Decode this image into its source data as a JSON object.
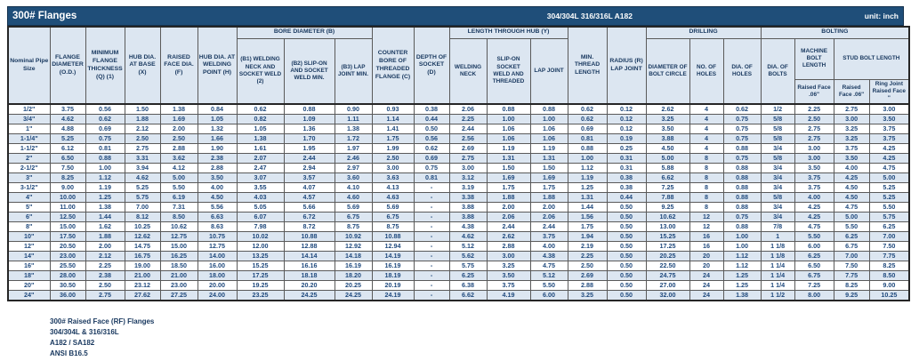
{
  "title_bar": {
    "title": "300# Flanges",
    "material": "304/304L 316/316L A182",
    "unit": "unit: inch"
  },
  "table": {
    "group_headers": {
      "bore": "BORE DIAMETER (B)",
      "length_hub": "LENGTH THROUGH HUB (Y)",
      "drilling": "DRILLING",
      "bolting": "BOLTING"
    },
    "headers": {
      "nps": "Nominal Pipe Size",
      "od": "FLANGE DIAMETER (O.D.)",
      "thickness": "MINIMUM FLANGE THICKNESS (Q) (1)",
      "hub_base": "HUB DIA. AT BASE (X)",
      "raised_face_dia": "RAISED FACE DIA. (F)",
      "hub_weld_point": "HUB DIA. AT WELDING POINT (H)",
      "b1": "(B1) WELDING NECK AND SOCKET WELD (2)",
      "b2": "(B2) SLIP-ON AND SOCKET WELD MIN.",
      "b3": "(B3) LAP JOINT MIN.",
      "counter_bore": "COUNTER BORE OF THREADED FLANGE (C)",
      "depth_socket": "DEPTH OF SOCKET (D)",
      "welding_neck": "WELDING NECK",
      "slip_on": "SLIP-ON SOCKET WELD AND THREADED",
      "lap_joint": "LAP JOINT",
      "min_thread": "MIN. THREAD LENGTH",
      "radius": "RADIUS (R) LAP JOINT",
      "bolt_circle": "DIAMETER OF BOLT CIRCLE",
      "no_holes": "NO. OF HOLES",
      "dia_holes": "DIA. OF HOLES",
      "dia_bolts": "DIA. OF BOLTS",
      "machine_bolt": "MACHINE BOLT LENGTH",
      "stud_bolt": "STUD BOLT LENGTH",
      "machine_rf": "Raised Face .06\"",
      "stud_rf": "Raised Face .06\"",
      "ring_joint_rf": "Ring Joint Raised Face \""
    },
    "column_keys": [
      "nps",
      "od",
      "thickness",
      "hub_base",
      "raised_face_dia",
      "hub_weld_point",
      "b1",
      "b2",
      "b3",
      "counter_bore",
      "depth_socket",
      "welding_neck",
      "slip_on",
      "lap_joint",
      "min_thread",
      "radius",
      "bolt_circle",
      "no_holes",
      "dia_holes",
      "dia_bolts",
      "machine_bolt_rf",
      "stud_bolt_rf",
      "stud_bolt_ring"
    ],
    "rows": [
      [
        "1/2\"",
        "3.75",
        "0.56",
        "1.50",
        "1.38",
        "0.84",
        "0.62",
        "0.88",
        "0.90",
        "0.93",
        "0.38",
        "2.06",
        "0.88",
        "0.88",
        "0.62",
        "0.12",
        "2.62",
        "4",
        "0.62",
        "1/2",
        "2.25",
        "2.75",
        "3.00"
      ],
      [
        "3/4\"",
        "4.62",
        "0.62",
        "1.88",
        "1.69",
        "1.05",
        "0.82",
        "1.09",
        "1.11",
        "1.14",
        "0.44",
        "2.25",
        "1.00",
        "1.00",
        "0.62",
        "0.12",
        "3.25",
        "4",
        "0.75",
        "5/8",
        "2.50",
        "3.00",
        "3.50"
      ],
      [
        "1\"",
        "4.88",
        "0.69",
        "2.12",
        "2.00",
        "1.32",
        "1.05",
        "1.36",
        "1.38",
        "1.41",
        "0.50",
        "2.44",
        "1.06",
        "1.06",
        "0.69",
        "0.12",
        "3.50",
        "4",
        "0.75",
        "5/8",
        "2.75",
        "3.25",
        "3.75"
      ],
      [
        "1-1/4\"",
        "5.25",
        "0.75",
        "2.50",
        "2.50",
        "1.66",
        "1.38",
        "1.70",
        "1.72",
        "1.75",
        "0.56",
        "2.56",
        "1.06",
        "1.06",
        "0.81",
        "0.19",
        "3.88",
        "4",
        "0.75",
        "5/8",
        "2.75",
        "3.25",
        "3.75"
      ],
      [
        "1-1/2\"",
        "6.12",
        "0.81",
        "2.75",
        "2.88",
        "1.90",
        "1.61",
        "1.95",
        "1.97",
        "1.99",
        "0.62",
        "2.69",
        "1.19",
        "1.19",
        "0.88",
        "0.25",
        "4.50",
        "4",
        "0.88",
        "3/4",
        "3.00",
        "3.75",
        "4.25"
      ],
      [
        "2\"",
        "6.50",
        "0.88",
        "3.31",
        "3.62",
        "2.38",
        "2.07",
        "2.44",
        "2.46",
        "2.50",
        "0.69",
        "2.75",
        "1.31",
        "1.31",
        "1.00",
        "0.31",
        "5.00",
        "8",
        "0.75",
        "5/8",
        "3.00",
        "3.50",
        "4.25"
      ],
      [
        "2-1/2\"",
        "7.50",
        "1.00",
        "3.94",
        "4.12",
        "2.88",
        "2.47",
        "2.94",
        "2.97",
        "3.00",
        "0.75",
        "3.00",
        "1.50",
        "1.50",
        "1.12",
        "0.31",
        "5.88",
        "8",
        "0.88",
        "3/4",
        "3.50",
        "4.00",
        "4.75"
      ],
      [
        "3\"",
        "8.25",
        "1.12",
        "4.62",
        "5.00",
        "3.50",
        "3.07",
        "3.57",
        "3.60",
        "3.63",
        "0.81",
        "3.12",
        "1.69",
        "1.69",
        "1.19",
        "0.38",
        "6.62",
        "8",
        "0.88",
        "3/4",
        "3.75",
        "4.25",
        "5.00"
      ],
      [
        "3-1/2\"",
        "9.00",
        "1.19",
        "5.25",
        "5.50",
        "4.00",
        "3.55",
        "4.07",
        "4.10",
        "4.13",
        "-",
        "3.19",
        "1.75",
        "1.75",
        "1.25",
        "0.38",
        "7.25",
        "8",
        "0.88",
        "3/4",
        "3.75",
        "4.50",
        "5.25"
      ],
      [
        "4\"",
        "10.00",
        "1.25",
        "5.75",
        "6.19",
        "4.50",
        "4.03",
        "4.57",
        "4.60",
        "4.63",
        "-",
        "3.38",
        "1.88",
        "1.88",
        "1.31",
        "0.44",
        "7.88",
        "8",
        "0.88",
        "5/8",
        "4.00",
        "4.50",
        "5.25"
      ],
      [
        "5\"",
        "11.00",
        "1.38",
        "7.00",
        "7.31",
        "5.56",
        "5.05",
        "5.66",
        "5.69",
        "5.69",
        "-",
        "3.88",
        "2.00",
        "2.00",
        "1.44",
        "0.50",
        "9.25",
        "8",
        "0.88",
        "3/4",
        "4.25",
        "4.75",
        "5.50"
      ],
      [
        "6\"",
        "12.50",
        "1.44",
        "8.12",
        "8.50",
        "6.63",
        "6.07",
        "6.72",
        "6.75",
        "6.75",
        "-",
        "3.88",
        "2.06",
        "2.06",
        "1.56",
        "0.50",
        "10.62",
        "12",
        "0.75",
        "3/4",
        "4.25",
        "5.00",
        "5.75"
      ],
      [
        "8\"",
        "15.00",
        "1.62",
        "10.25",
        "10.62",
        "8.63",
        "7.98",
        "8.72",
        "8.75",
        "8.75",
        "-",
        "4.38",
        "2.44",
        "2.44",
        "1.75",
        "0.50",
        "13.00",
        "12",
        "0.88",
        "7/8",
        "4.75",
        "5.50",
        "6.25"
      ],
      [
        "10\"",
        "17.50",
        "1.88",
        "12.62",
        "12.75",
        "10.75",
        "10.02",
        "10.88",
        "10.92",
        "10.88",
        "-",
        "4.62",
        "2.62",
        "3.75",
        "1.94",
        "0.50",
        "15.25",
        "16",
        "1.00",
        "1",
        "5.50",
        "6.25",
        "7.00"
      ],
      [
        "12\"",
        "20.50",
        "2.00",
        "14.75",
        "15.00",
        "12.75",
        "12.00",
        "12.88",
        "12.92",
        "12.94",
        "-",
        "5.12",
        "2.88",
        "4.00",
        "2.19",
        "0.50",
        "17.25",
        "16",
        "1.00",
        "1 1/8",
        "6.00",
        "6.75",
        "7.50"
      ],
      [
        "14\"",
        "23.00",
        "2.12",
        "16.75",
        "16.25",
        "14.00",
        "13.25",
        "14.14",
        "14.18",
        "14.19",
        "-",
        "5.62",
        "3.00",
        "4.38",
        "2.25",
        "0.50",
        "20.25",
        "20",
        "1.12",
        "1 1/8",
        "6.25",
        "7.00",
        "7.75"
      ],
      [
        "16\"",
        "25.50",
        "2.25",
        "19.00",
        "18.50",
        "16.00",
        "15.25",
        "16.16",
        "16.19",
        "16.19",
        "-",
        "5.75",
        "3.25",
        "4.75",
        "2.50",
        "0.50",
        "22.50",
        "20",
        "1.12",
        "1 1/4",
        "6.50",
        "7.50",
        "8.25"
      ],
      [
        "18\"",
        "28.00",
        "2.38",
        "21.00",
        "21.00",
        "18.00",
        "17.25",
        "18.18",
        "18.20",
        "18.19",
        "-",
        "6.25",
        "3.50",
        "5.12",
        "2.69",
        "0.50",
        "24.75",
        "24",
        "1.25",
        "1 1/4",
        "6.75",
        "7.75",
        "8.50"
      ],
      [
        "20\"",
        "30.50",
        "2.50",
        "23.12",
        "23.00",
        "20.00",
        "19.25",
        "20.20",
        "20.25",
        "20.19",
        "-",
        "6.38",
        "3.75",
        "5.50",
        "2.88",
        "0.50",
        "27.00",
        "24",
        "1.25",
        "1 1/4",
        "7.25",
        "8.25",
        "9.00"
      ],
      [
        "24\"",
        "36.00",
        "2.75",
        "27.62",
        "27.25",
        "24.00",
        "23.25",
        "24.25",
        "24.25",
        "24.19",
        "-",
        "6.62",
        "4.19",
        "6.00",
        "3.25",
        "0.50",
        "32.00",
        "24",
        "1.38",
        "1 1/2",
        "8.00",
        "9.25",
        "10.25"
      ]
    ]
  },
  "footer": {
    "lines": [
      "300# Raised Face (RF) Flanges",
      "304/304L & 316/316L",
      "A182 / SA182",
      "ANSI B16.5"
    ]
  },
  "colors": {
    "title_bar_bg": "#1F4E79",
    "header_bg": "#DCE6F1",
    "stripe_bg": "#DCE6F1",
    "text": "#1F497D"
  }
}
